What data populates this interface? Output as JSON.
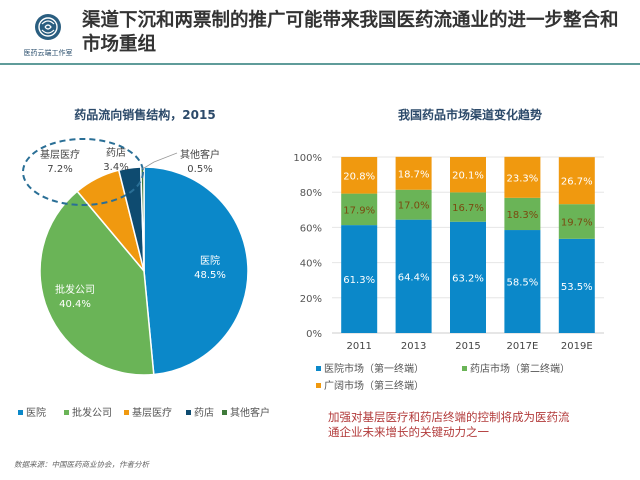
{
  "header": {
    "logo_text": "医药云端工作室",
    "title": "渠道下沉和两票制的推广可能带来我国医药流通业的进一步整合和市场重组"
  },
  "colors": {
    "hospital": "#0b88c9",
    "wholesale": "#6ab457",
    "grassroots": "#f0990f",
    "pharmacy": "#0e4b70",
    "other": "#3f7a3a",
    "header_rule": "#5f9c9a",
    "caption": "#b23a3a",
    "title_blue": "#2c4a6a"
  },
  "chart_data": [
    {
      "type": "pie",
      "title": "药品流向销售结构，2015",
      "slices": [
        {
          "name": "医院",
          "value": 48.5,
          "label": "48.5%"
        },
        {
          "name": "批发公司",
          "value": 40.4,
          "label": "40.4%"
        },
        {
          "name": "基层医疗",
          "value": 7.2,
          "label": "7.2%"
        },
        {
          "name": "药店",
          "value": 3.4,
          "label": "3.4%"
        },
        {
          "name": "其他客户",
          "value": 0.5,
          "label": "0.5%"
        }
      ],
      "legend": [
        "医院",
        "批发公司",
        "基层医疗",
        "药店",
        "其他客户"
      ],
      "legend_position": "bottom",
      "highlight": "基层医疗, 药店 circled with dashed ellipse"
    },
    {
      "type": "bar",
      "stacked": true,
      "title": "我国药品市场渠道变化趋势",
      "categories": [
        "2011",
        "2013",
        "2015",
        "2017E",
        "2019E"
      ],
      "series": [
        {
          "name": "医院市场（第一终端）",
          "values": [
            61.3,
            64.4,
            63.2,
            58.5,
            53.5
          ],
          "labels": [
            "61.3%",
            "64.4%",
            "63.2%",
            "58.5%",
            "53.5%"
          ]
        },
        {
          "name": "药店市场（第二终端）",
          "values": [
            17.9,
            17.0,
            16.7,
            18.3,
            19.7
          ],
          "labels": [
            "17.9%",
            "17.0%",
            "16.7%",
            "18.3%",
            "19.7%"
          ]
        },
        {
          "name": "广阔市场（第三终端）",
          "values": [
            20.8,
            18.7,
            20.1,
            23.3,
            26.7
          ],
          "labels": [
            "20.8%",
            "18.7%",
            "20.1%",
            "23.3%",
            "26.7%"
          ]
        }
      ],
      "yticks": [
        "0%",
        "20%",
        "40%",
        "60%",
        "80%",
        "100%"
      ],
      "ylim": [
        0,
        100
      ],
      "grid": true,
      "legend_position": "bottom"
    }
  ],
  "caption": {
    "line1": "加强对基层医疗和药店终端的控制将成为医药流",
    "line2": "通企业未来增长的关键动力之一"
  },
  "footnote": "数据来源：中国医药商业协会，作者分析"
}
